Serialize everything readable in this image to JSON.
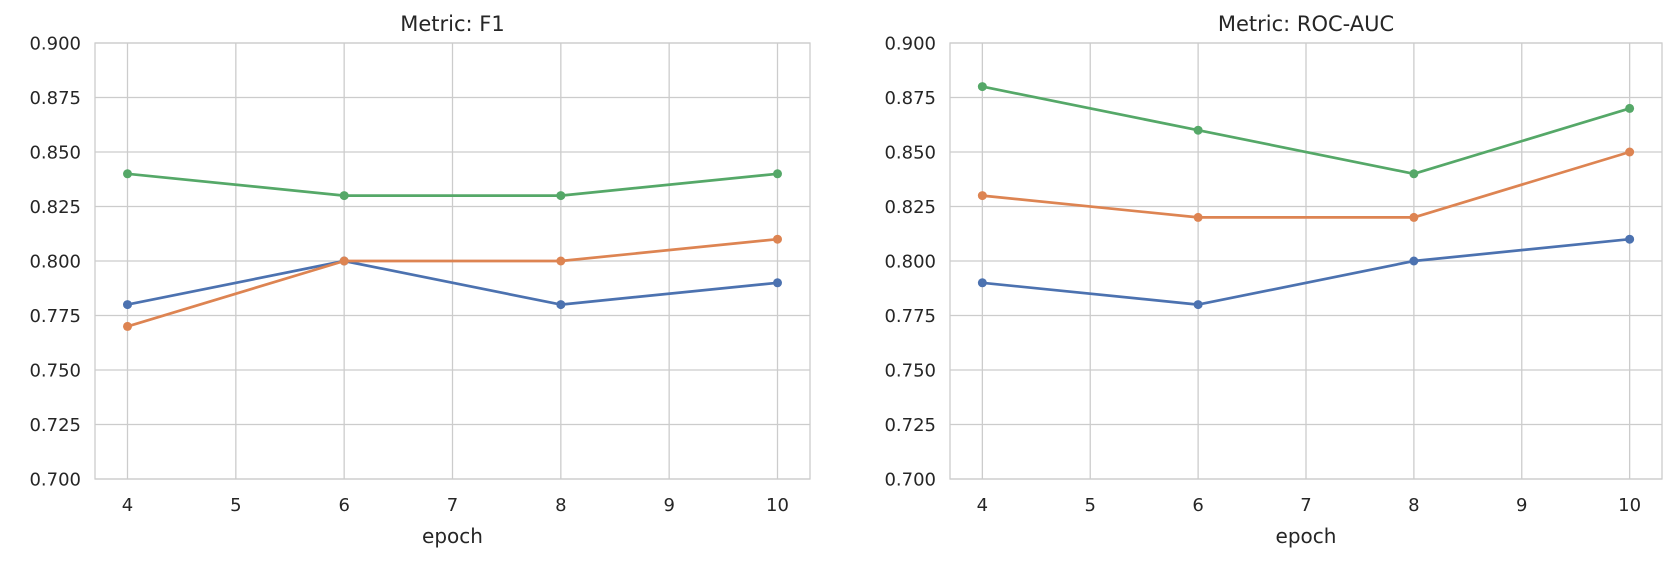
{
  "figure": {
    "background": "#ffffff",
    "grid_color": "#cccccc",
    "frame_color": "#cccccc",
    "text_color": "#262626"
  },
  "chart_data": [
    {
      "type": "line",
      "title": "Metric: F1",
      "xlabel": "epoch",
      "ylabel": "",
      "x": [
        4,
        6,
        8,
        10
      ],
      "xticks": [
        4,
        5,
        6,
        7,
        8,
        9,
        10
      ],
      "yticks": [
        0.7,
        0.725,
        0.75,
        0.775,
        0.8,
        0.825,
        0.85,
        0.875,
        0.9
      ],
      "ytick_labels": [
        "0.700",
        "0.725",
        "0.750",
        "0.775",
        "0.800",
        "0.825",
        "0.850",
        "0.875",
        "0.900"
      ],
      "xlim": [
        3.7,
        10.3
      ],
      "ylim": [
        0.7,
        0.9
      ],
      "grid": true,
      "legend": "none",
      "series": [
        {
          "name": "blue",
          "color": "#4C72B0",
          "values": [
            0.78,
            0.8,
            0.78,
            0.79
          ]
        },
        {
          "name": "orange",
          "color": "#DD8452",
          "values": [
            0.77,
            0.8,
            0.8,
            0.81
          ]
        },
        {
          "name": "green",
          "color": "#55A868",
          "values": [
            0.84,
            0.83,
            0.83,
            0.84
          ]
        }
      ]
    },
    {
      "type": "line",
      "title": "Metric: ROC-AUC",
      "xlabel": "epoch",
      "ylabel": "",
      "x": [
        4,
        6,
        8,
        10
      ],
      "xticks": [
        4,
        5,
        6,
        7,
        8,
        9,
        10
      ],
      "yticks": [
        0.7,
        0.725,
        0.75,
        0.775,
        0.8,
        0.825,
        0.85,
        0.875,
        0.9
      ],
      "ytick_labels": [
        "0.700",
        "0.725",
        "0.750",
        "0.775",
        "0.800",
        "0.825",
        "0.850",
        "0.875",
        "0.900"
      ],
      "xlim": [
        3.7,
        10.3
      ],
      "ylim": [
        0.7,
        0.9
      ],
      "grid": true,
      "legend": "none",
      "series": [
        {
          "name": "blue",
          "color": "#4C72B0",
          "values": [
            0.79,
            0.78,
            0.8,
            0.81
          ]
        },
        {
          "name": "orange",
          "color": "#DD8452",
          "values": [
            0.83,
            0.82,
            0.82,
            0.85
          ]
        },
        {
          "name": "green",
          "color": "#55A868",
          "values": [
            0.88,
            0.86,
            0.84,
            0.87
          ]
        }
      ]
    }
  ]
}
